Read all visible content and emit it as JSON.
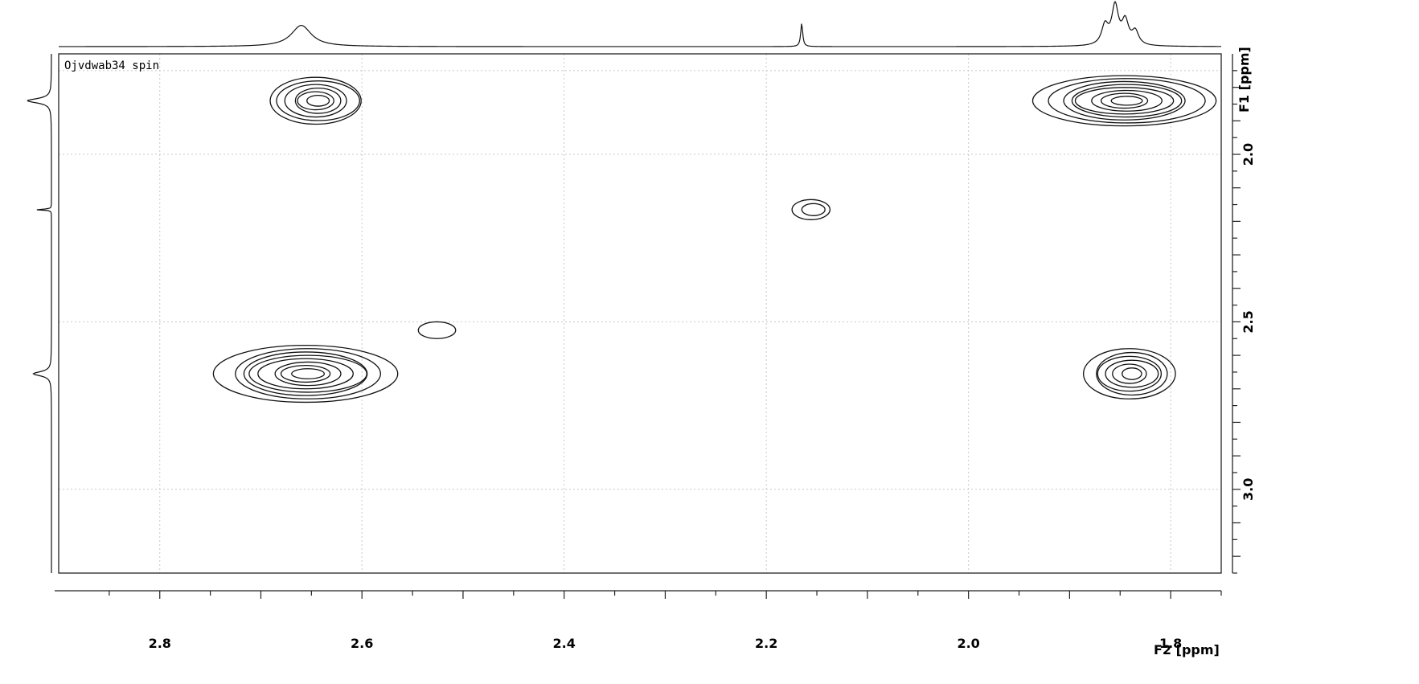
{
  "chart_data": {
    "type": "contour",
    "spectrum_label": "Ojvdwab34 spin",
    "xlabel": "F2 [ppm]",
    "ylabel": "F1 [ppm]",
    "xlim": [
      2.9,
      1.75
    ],
    "ylim": [
      1.7,
      3.25
    ],
    "x_ticks": [
      "2.8",
      "2.6",
      "2.4",
      "2.2",
      "2.0",
      "1.8"
    ],
    "y_ticks": [
      "2.0",
      "2.5",
      "3.0"
    ],
    "x_grid": [
      2.8,
      2.6,
      2.4,
      2.2,
      2.0,
      1.8
    ],
    "y_grid": [
      1.75,
      2.0,
      2.5,
      3.0
    ],
    "grid": true,
    "cross_peaks": [
      {
        "x": 2.645,
        "y": 1.84,
        "rx": 0.045,
        "ry": 0.07,
        "levels": 6
      },
      {
        "x": 1.845,
        "y": 1.84,
        "rx": 0.085,
        "ry": 0.075,
        "levels": 8
      },
      {
        "x": 2.655,
        "y": 2.655,
        "rx": 0.085,
        "ry": 0.085,
        "levels": 8
      },
      {
        "x": 1.84,
        "y": 2.655,
        "rx": 0.045,
        "ry": 0.075,
        "levels": 6
      },
      {
        "x": 2.155,
        "y": 2.165,
        "rx": 0.02,
        "ry": 0.03,
        "levels": 2
      },
      {
        "x": 2.525,
        "y": 2.525,
        "rx": 0.02,
        "ry": 0.025,
        "levels": 1
      }
    ],
    "top_projection_peaks": [
      {
        "x": 2.66,
        "height": 0.55,
        "width": 0.012
      },
      {
        "x": 2.165,
        "height": 0.6,
        "width": 0.0012
      },
      {
        "x": 1.855,
        "height": 1.0,
        "width": 0.004
      },
      {
        "x": 1.845,
        "height": 0.6,
        "width": 0.004
      },
      {
        "x": 1.865,
        "height": 0.5,
        "width": 0.004
      },
      {
        "x": 1.835,
        "height": 0.35,
        "width": 0.004
      }
    ],
    "left_projection_peaks": [
      {
        "y": 1.84,
        "height": 0.6,
        "width": 0.008
      },
      {
        "y": 2.165,
        "height": 0.4,
        "width": 0.0015
      },
      {
        "y": 2.655,
        "height": 0.45,
        "width": 0.008
      }
    ]
  }
}
